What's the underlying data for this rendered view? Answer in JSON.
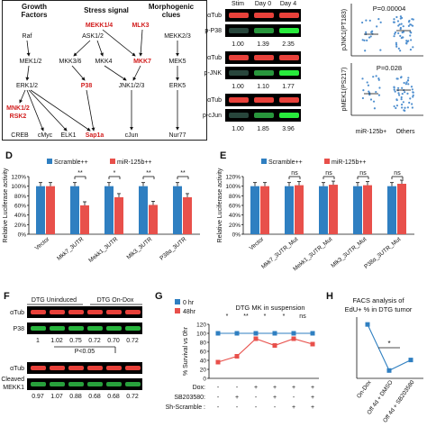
{
  "pathway": {
    "headers": [
      "Growth Factors",
      "Stress signal",
      "Morphogenic clues"
    ],
    "nodes": [
      "Raf",
      "MEK1/2",
      "ERK1/2",
      "MNK1/2",
      "RSK2",
      "CREB",
      "cMyc",
      "ELK1",
      "Sap1a",
      "MEKK1/4",
      "ASK1/2",
      "MLK3",
      "MKK3/6",
      "MKK4",
      "MKK7",
      "P38",
      "JNK1/2/3",
      "cJun",
      "MEKK2/3",
      "MEK5",
      "ERK5",
      "Nur77"
    ],
    "highlight_color": "#d21e1e"
  },
  "blots_top": {
    "columns": [
      "Stim",
      "Day 0",
      "Day 4"
    ],
    "rows": [
      {
        "load": "αTub",
        "target": "p-P38",
        "values": [
          "1.00",
          "1.39",
          "2.35"
        ]
      },
      {
        "load": "αTub",
        "target": "p-JNK",
        "values": [
          "1.00",
          "1.10",
          "1.77"
        ]
      },
      {
        "load": "αTub",
        "target": "p-cJun",
        "values": [
          "1.00",
          "1.85",
          "3.96"
        ]
      }
    ]
  },
  "scatter": {
    "panels": [
      {
        "ylabel": "pJNK1(PT183)",
        "pvalue": "P=0.00004"
      },
      {
        "ylabel": "pMEK1(PS217)",
        "pvalue": "P=0.028"
      }
    ],
    "groups": [
      "miR-125b+",
      "Others"
    ]
  },
  "panel_labels": [
    "D",
    "E",
    "F",
    "G",
    "H"
  ],
  "chart_data": [
    {
      "type": "bar",
      "title": "",
      "ylabel": "Relative Luciferase activity",
      "ylim": [
        0,
        120
      ],
      "yticks": [
        "0%",
        "20%",
        "40%",
        "60%",
        "80%",
        "100%",
        "120%"
      ],
      "categories": [
        "Vector",
        "Mkk7_3UTR",
        "Mekk1_3UTR",
        "Mlk3_3UTR",
        "P38α_3UTR"
      ],
      "series": [
        {
          "name": "Scramble++",
          "color": "#2f7fc1",
          "values": [
            100,
            100,
            100,
            100,
            100
          ]
        },
        {
          "name": "miR-125b++",
          "color": "#e8504b",
          "values": [
            100,
            60,
            77,
            61,
            77
          ]
        }
      ],
      "significance": [
        "",
        "**",
        "*",
        "**",
        "**"
      ]
    },
    {
      "type": "bar",
      "title": "",
      "ylabel": "Relative Luciferase activity",
      "ylim": [
        0,
        120
      ],
      "yticks": [
        "0%",
        "20%",
        "40%",
        "60%",
        "80%",
        "100%",
        "120%"
      ],
      "categories": [
        "Vector",
        "Mkk7_3UTR_Mut",
        "Mekk1_3UTR_Mut",
        "Mlk3_3UTR_Mut",
        "P38α_3UTR_Mut"
      ],
      "series": [
        {
          "name": "Scramble++",
          "color": "#2f7fc1",
          "values": [
            100,
            100,
            100,
            100,
            100
          ]
        },
        {
          "name": "miR-125b++",
          "color": "#e8504b",
          "values": [
            100,
            102,
            103,
            102,
            105
          ]
        }
      ],
      "significance": [
        "",
        "ns",
        "ns",
        "ns",
        "ns"
      ]
    },
    {
      "type": "line",
      "title": "DTG MK in suspension",
      "ylabel": "% Survival vs 0hr",
      "ylim": [
        0,
        120
      ],
      "yticks": [
        "0",
        "20",
        "40",
        "60",
        "80",
        "100",
        "120"
      ],
      "series": [
        {
          "name": "0 hr",
          "color": "#2f7fc1",
          "values": [
            100,
            100,
            100,
            100,
            100,
            100
          ]
        },
        {
          "name": "48hr",
          "color": "#e8504b",
          "values": [
            36,
            49,
            88,
            73,
            88,
            76
          ]
        }
      ],
      "row_labels": [
        "Dox:",
        "SB203580:",
        "Sh-Scramble :"
      ],
      "treatment_rows": [
        [
          "-",
          "-",
          "+",
          "+",
          "+",
          "+"
        ],
        [
          "-",
          "+",
          "-",
          "+",
          "-",
          "+"
        ],
        [
          "-",
          "-",
          "-",
          "-",
          "+",
          "+"
        ]
      ],
      "significance": [
        "*",
        "**",
        "*",
        "*",
        "ns"
      ]
    },
    {
      "type": "line",
      "title": "FACS analysis of EdU+ % in DTG tumor",
      "ylim": [
        0,
        25
      ],
      "categories": [
        "On-Dox",
        "Off 4d + DMSO",
        "Off 4d + SB203580"
      ],
      "series": [
        {
          "name": "EdU+",
          "color": "#2f7fc1",
          "values": [
            22,
            3.2,
            7.5
          ]
        }
      ],
      "significance": [
        "*"
      ]
    }
  ],
  "blots_F": {
    "conditions": [
      "DTG Uninduced",
      "DTG On-Dox"
    ],
    "rows": [
      {
        "label": "αTub",
        "values": []
      },
      {
        "label": "P38",
        "values": [
          "1",
          "1.02",
          "0.75",
          "0.72",
          "0.70",
          "0.72"
        ]
      },
      {
        "label": "αTub",
        "values": []
      },
      {
        "label": "Cleaved MEKK1",
        "values": [
          "0.97",
          "1.07",
          "0.88",
          "0.68",
          "0.68",
          "0.72"
        ]
      }
    ],
    "pvalue": "P<0.05"
  }
}
